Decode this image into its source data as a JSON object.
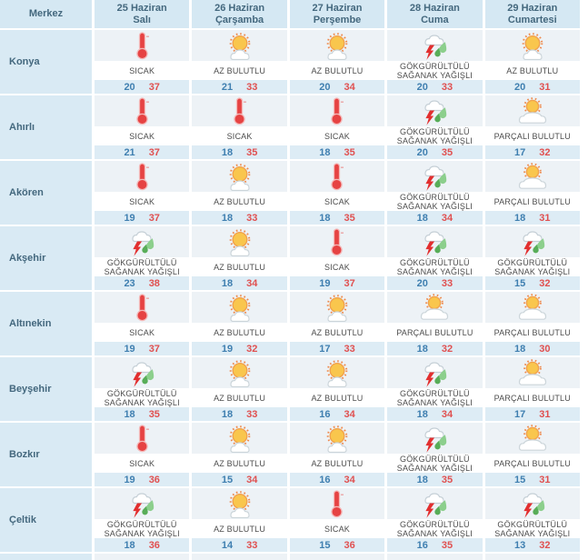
{
  "colors": {
    "header_bg": "#d5e8f3",
    "city_bg": "#d9eaf4",
    "icon_bg": "#edf2f6",
    "temp_bg": "#ddecf5",
    "header_text": "#44687e",
    "condition_text": "#4c4c4c",
    "min_temp": "#3f7fb0",
    "max_temp": "#e05050",
    "sun": "#f9c64d",
    "thermometer_red": "#e64343",
    "lightning_red": "#e22f2f",
    "rain_green": "#6fbf6f"
  },
  "icons": {
    "hot": "thermometer-icon",
    "partly": "sun-small-cloud-icon",
    "mostly": "sun-behind-cloud-icon",
    "storm": "thunderstorm-rain-icon"
  },
  "table": {
    "merkez_label": "Merkez",
    "days": [
      {
        "date": "25 Haziran",
        "day": "Salı"
      },
      {
        "date": "26 Haziran",
        "day": "Çarşamba"
      },
      {
        "date": "27 Haziran",
        "day": "Perşembe"
      },
      {
        "date": "28 Haziran",
        "day": "Cuma"
      },
      {
        "date": "29 Haziran",
        "day": "Cumartesi"
      }
    ],
    "rows": [
      {
        "city": "Konya",
        "cells": [
          {
            "icon": "hot",
            "condition": "SICAK",
            "min": 20,
            "max": 37
          },
          {
            "icon": "partly",
            "condition": "AZ BULUTLU",
            "min": 21,
            "max": 33
          },
          {
            "icon": "partly",
            "condition": "AZ BULUTLU",
            "min": 20,
            "max": 34
          },
          {
            "icon": "storm",
            "condition": "GÖKGÜRÜLTÜLÜ SAĞANAK YAĞIŞLI",
            "min": 20,
            "max": 33
          },
          {
            "icon": "partly",
            "condition": "AZ BULUTLU",
            "min": 20,
            "max": 31
          }
        ]
      },
      {
        "city": "Ahırlı",
        "cells": [
          {
            "icon": "hot",
            "condition": "SICAK",
            "min": 21,
            "max": 37
          },
          {
            "icon": "hot",
            "condition": "SICAK",
            "min": 18,
            "max": 35
          },
          {
            "icon": "hot",
            "condition": "SICAK",
            "min": 18,
            "max": 35
          },
          {
            "icon": "storm",
            "condition": "GÖKGÜRÜLTÜLÜ SAĞANAK YAĞIŞLI",
            "min": 20,
            "max": 35
          },
          {
            "icon": "mostly",
            "condition": "PARÇALI BULUTLU",
            "min": 17,
            "max": 32
          }
        ]
      },
      {
        "city": "Akören",
        "cells": [
          {
            "icon": "hot",
            "condition": "SICAK",
            "min": 19,
            "max": 37
          },
          {
            "icon": "partly",
            "condition": "AZ BULUTLU",
            "min": 18,
            "max": 33
          },
          {
            "icon": "hot",
            "condition": "SICAK",
            "min": 18,
            "max": 35
          },
          {
            "icon": "storm",
            "condition": "GÖKGÜRÜLTÜLÜ SAĞANAK YAĞIŞLI",
            "min": 18,
            "max": 34
          },
          {
            "icon": "mostly",
            "condition": "PARÇALI BULUTLU",
            "min": 18,
            "max": 31
          }
        ]
      },
      {
        "city": "Akşehir",
        "cells": [
          {
            "icon": "storm",
            "condition": "GÖKGÜRÜLTÜLÜ SAĞANAK YAĞIŞLI",
            "min": 23,
            "max": 38
          },
          {
            "icon": "partly",
            "condition": "AZ BULUTLU",
            "min": 18,
            "max": 34
          },
          {
            "icon": "hot",
            "condition": "SICAK",
            "min": 19,
            "max": 37
          },
          {
            "icon": "storm",
            "condition": "GÖKGÜRÜLTÜLÜ SAĞANAK YAĞIŞLI",
            "min": 20,
            "max": 33
          },
          {
            "icon": "storm",
            "condition": "GÖKGÜRÜLTÜLÜ SAĞANAK YAĞIŞLI",
            "min": 15,
            "max": 32
          }
        ]
      },
      {
        "city": "Altınekin",
        "cells": [
          {
            "icon": "hot",
            "condition": "SICAK",
            "min": 19,
            "max": 37
          },
          {
            "icon": "partly",
            "condition": "AZ BULUTLU",
            "min": 19,
            "max": 32
          },
          {
            "icon": "partly",
            "condition": "AZ BULUTLU",
            "min": 17,
            "max": 33
          },
          {
            "icon": "mostly",
            "condition": "PARÇALI BULUTLU",
            "min": 18,
            "max": 32
          },
          {
            "icon": "mostly",
            "condition": "PARÇALI BULUTLU",
            "min": 18,
            "max": 30
          }
        ]
      },
      {
        "city": "Beyşehir",
        "cells": [
          {
            "icon": "storm",
            "condition": "GÖKGÜRÜLTÜLÜ SAĞANAK YAĞIŞLI",
            "min": 18,
            "max": 35
          },
          {
            "icon": "partly",
            "condition": "AZ BULUTLU",
            "min": 18,
            "max": 33
          },
          {
            "icon": "partly",
            "condition": "AZ BULUTLU",
            "min": 16,
            "max": 34
          },
          {
            "icon": "storm",
            "condition": "GÖKGÜRÜLTÜLÜ SAĞANAK YAĞIŞLI",
            "min": 18,
            "max": 34
          },
          {
            "icon": "mostly",
            "condition": "PARÇALI BULUTLU",
            "min": 17,
            "max": 31
          }
        ]
      },
      {
        "city": "Bozkır",
        "cells": [
          {
            "icon": "hot",
            "condition": "SICAK",
            "min": 19,
            "max": 36
          },
          {
            "icon": "partly",
            "condition": "AZ BULUTLU",
            "min": 15,
            "max": 34
          },
          {
            "icon": "partly",
            "condition": "AZ BULUTLU",
            "min": 16,
            "max": 34
          },
          {
            "icon": "storm",
            "condition": "GÖKGÜRÜLTÜLÜ SAĞANAK YAĞIŞLI",
            "min": 18,
            "max": 35
          },
          {
            "icon": "mostly",
            "condition": "PARÇALI BULUTLU",
            "min": 15,
            "max": 31
          }
        ]
      },
      {
        "city": "Çeltik",
        "cells": [
          {
            "icon": "storm",
            "condition": "GÖKGÜRÜLTÜLÜ SAĞANAK YAĞIŞLI",
            "min": 18,
            "max": 36
          },
          {
            "icon": "partly",
            "condition": "AZ BULUTLU",
            "min": 14,
            "max": 33
          },
          {
            "icon": "hot",
            "condition": "SICAK",
            "min": 15,
            "max": 36
          },
          {
            "icon": "storm",
            "condition": "GÖKGÜRÜLTÜLÜ SAĞANAK YAĞIŞLI",
            "min": 16,
            "max": 35
          },
          {
            "icon": "storm",
            "condition": "GÖKGÜRÜLTÜLÜ SAĞANAK YAĞIŞLI",
            "min": 13,
            "max": 32
          }
        ]
      }
    ]
  }
}
